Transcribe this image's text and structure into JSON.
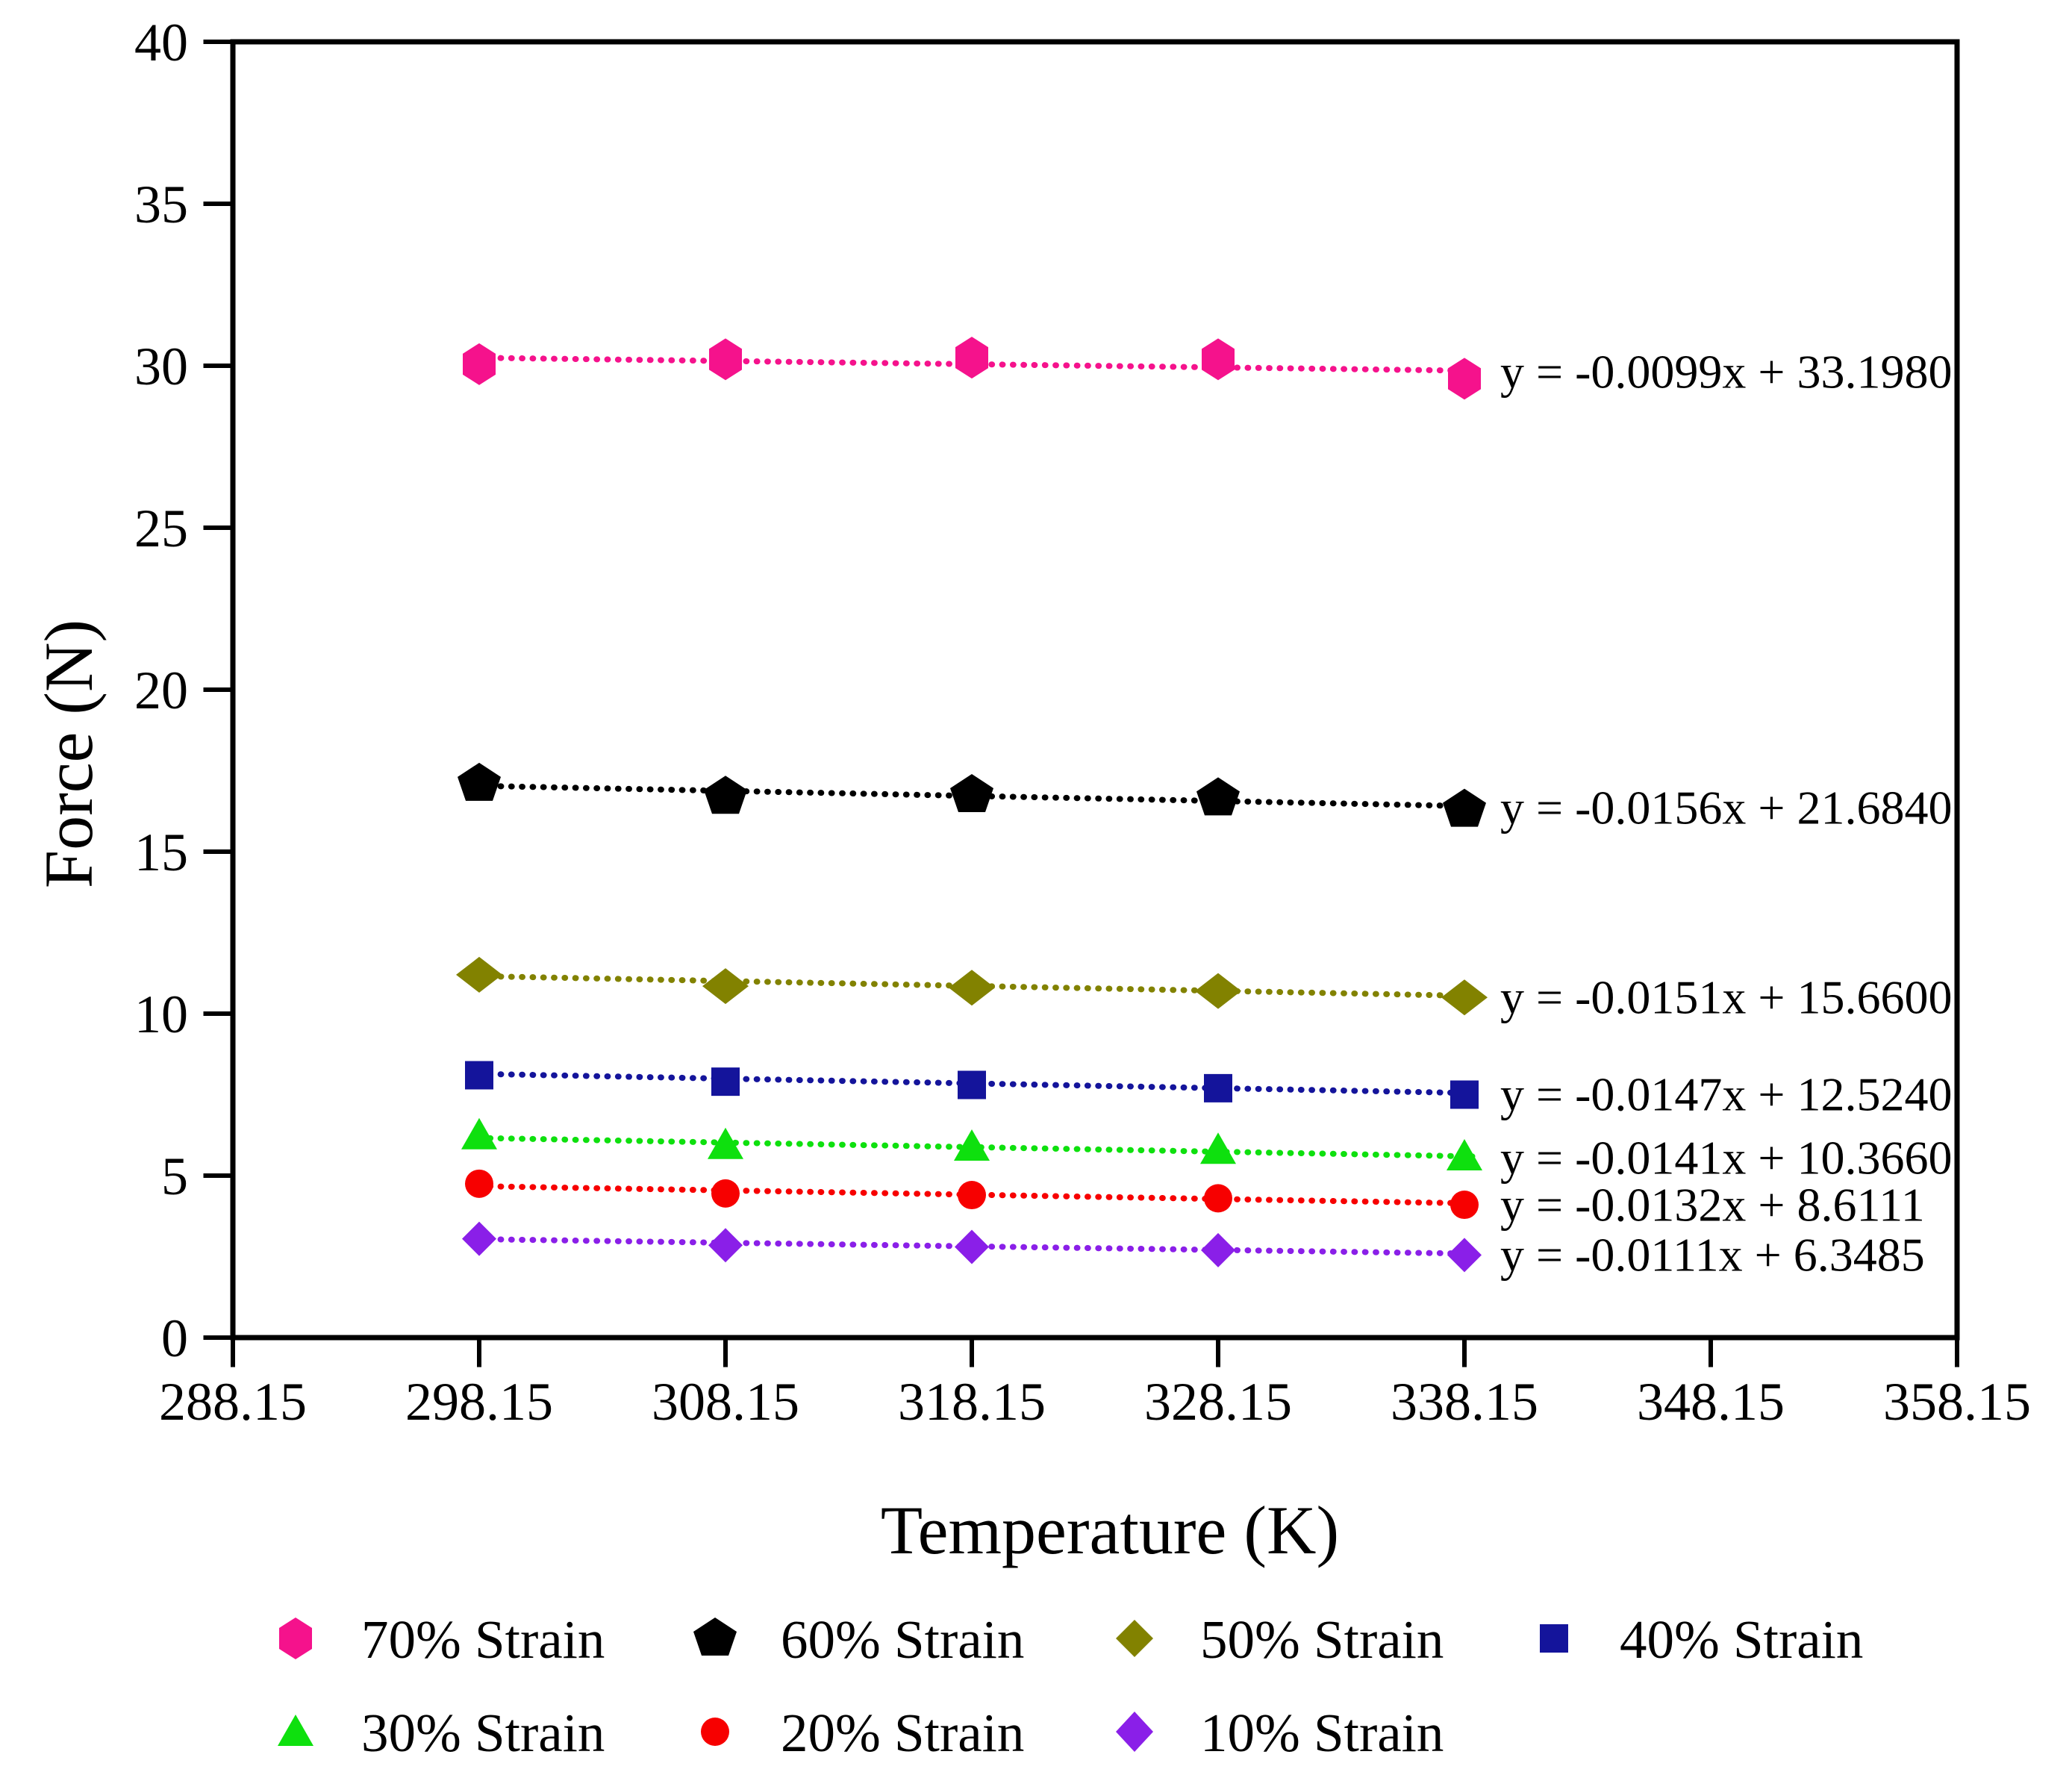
{
  "figure": {
    "background": "#ffffff"
  },
  "chart_data": {
    "type": "scatter",
    "title": "",
    "xlabel": "Temperature (K)",
    "ylabel": "Force (N)",
    "xlim": [
      288.15,
      358.15
    ],
    "ylim": [
      0,
      40
    ],
    "grid": false,
    "legend_position": "bottom",
    "trendline_style": "dotted",
    "xticks": {
      "values": [
        288.15,
        298.15,
        308.15,
        318.15,
        328.15,
        338.15,
        348.15,
        358.15
      ],
      "labels": [
        "288.15",
        "298.15",
        "308.15",
        "318.15",
        "328.15",
        "338.15",
        "348.15",
        "358.15"
      ]
    },
    "yticks": {
      "values": [
        0,
        5,
        10,
        15,
        20,
        25,
        30,
        35,
        40
      ],
      "labels": [
        "0",
        "5",
        "10",
        "15",
        "20",
        "25",
        "30",
        "35",
        "40"
      ]
    },
    "x": [
      298.15,
      308.15,
      318.15,
      328.15,
      338.15
    ],
    "series": [
      {
        "name": "70% Strain",
        "marker": "hexagon",
        "color": "#F5128C",
        "values": [
          30.05,
          30.2,
          30.25,
          30.2,
          29.6
        ],
        "trend": {
          "slope": -0.0099,
          "intercept": 33.198,
          "label": "y = -0.0099x + 33.1980"
        }
      },
      {
        "name": "60% Strain",
        "marker": "pentagon",
        "color": "#000000",
        "values": [
          17.1,
          16.7,
          16.75,
          16.65,
          16.3
        ],
        "trend": {
          "slope": -0.0156,
          "intercept": 21.684,
          "label": "y = -0.0156x + 21.6840"
        }
      },
      {
        "name": "50% Strain",
        "marker": "diamond-wide",
        "color": "#828200",
        "values": [
          11.2,
          10.85,
          10.8,
          10.7,
          10.5
        ],
        "trend": {
          "slope": -0.0151,
          "intercept": 15.66,
          "label": "y = -0.0151x + 15.6600"
        }
      },
      {
        "name": "40% Strain",
        "marker": "square",
        "color": "#14149B",
        "values": [
          8.1,
          7.9,
          7.8,
          7.7,
          7.5
        ],
        "trend": {
          "slope": -0.0147,
          "intercept": 12.524,
          "label": "y = -0.0147x + 12.5240"
        }
      },
      {
        "name": "30% Strain",
        "marker": "triangle",
        "color": "#0EE00E",
        "values": [
          6.25,
          5.95,
          5.9,
          5.8,
          5.6
        ],
        "trend": {
          "slope": -0.0141,
          "intercept": 10.366,
          "label": "y = -0.0141x + 10.3660"
        }
      },
      {
        "name": "20% Strain",
        "marker": "circle",
        "color": "#F70000",
        "values": [
          4.75,
          4.45,
          4.4,
          4.3,
          4.1
        ],
        "trend": {
          "slope": -0.0132,
          "intercept": 8.6111,
          "label": "y = -0.0132x + 8.6111"
        }
      },
      {
        "name": "10% Strain",
        "marker": "diamond",
        "color": "#8A1FE8",
        "values": [
          3.05,
          2.85,
          2.8,
          2.7,
          2.55
        ],
        "trend": {
          "slope": -0.0111,
          "intercept": 6.3485,
          "label": "y = -0.0111x + 6.3485"
        }
      }
    ],
    "legend_rows": [
      [
        "70% Strain",
        "60% Strain",
        "50% Strain",
        "40% Strain"
      ],
      [
        "30% Strain",
        "20% Strain",
        "10% Strain"
      ]
    ]
  }
}
